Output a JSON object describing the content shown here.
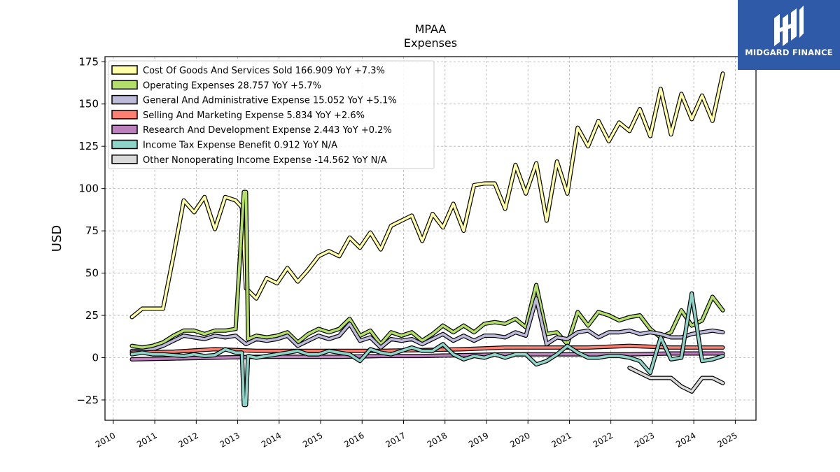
{
  "brand": {
    "name": "MIDGARD FINANCE",
    "bg_color": "#2f5aa8",
    "icon": "midgard-logo-icon"
  },
  "chart_data": {
    "type": "line",
    "title": "MPAA",
    "subtitle": "Expenses",
    "xlabel": "",
    "ylabel": "USD",
    "ylim": [
      -37,
      178
    ],
    "xlim": [
      2009.8,
      2025.5
    ],
    "yticks": [
      -25,
      0,
      25,
      50,
      75,
      100,
      125,
      150,
      175
    ],
    "ytick_labels": [
      "−25",
      "0",
      "25",
      "50",
      "75",
      "100",
      "125",
      "150",
      "175"
    ],
    "xticks": [
      2010,
      2011,
      2012,
      2013,
      2014,
      2015,
      2016,
      2017,
      2018,
      2019,
      2020,
      2021,
      2022,
      2023,
      2024,
      2025
    ],
    "grid": true,
    "legend_position": "top-left",
    "series": [
      {
        "name": "Cost Of Goods And Services Sold",
        "legend": "Cost Of Goods And Services Sold  166.909 YoY +7.3%",
        "color": "#ffffaa",
        "x": [
          2010.45,
          2010.7,
          2010.95,
          2011.2,
          2011.45,
          2011.7,
          2011.95,
          2012.2,
          2012.45,
          2012.7,
          2012.95,
          2013.1,
          2013.2,
          2013.45,
          2013.7,
          2013.95,
          2014.2,
          2014.45,
          2014.7,
          2014.95,
          2015.2,
          2015.45,
          2015.7,
          2015.95,
          2016.2,
          2016.45,
          2016.7,
          2016.95,
          2017.2,
          2017.45,
          2017.7,
          2017.95,
          2018.2,
          2018.45,
          2018.7,
          2018.95,
          2019.2,
          2019.45,
          2019.7,
          2019.95,
          2020.2,
          2020.45,
          2020.7,
          2020.95,
          2021.2,
          2021.45,
          2021.7,
          2021.95,
          2022.2,
          2022.45,
          2022.7,
          2022.95,
          2023.2,
          2023.45,
          2023.7,
          2023.95,
          2024.2,
          2024.45,
          2024.7
        ],
        "values": [
          24,
          29,
          29,
          29,
          60,
          93,
          86,
          95,
          76,
          95,
          93,
          89,
          41,
          35,
          47,
          44,
          53,
          45,
          52,
          60,
          63,
          60,
          71,
          65,
          74,
          64,
          78,
          81,
          84,
          69,
          85,
          77,
          91,
          75,
          102,
          103,
          103,
          88,
          114,
          97,
          115,
          81,
          116,
          97,
          136,
          125,
          140,
          128,
          139,
          134,
          147,
          131,
          159,
          132,
          156,
          141,
          155,
          140,
          168
        ]
      },
      {
        "name": "Operating Expenses",
        "legend": "Operating Expenses  28.757 YoY +5.7%",
        "color": "#b3de69",
        "x": [
          2010.45,
          2010.7,
          2010.95,
          2011.2,
          2011.45,
          2011.7,
          2011.95,
          2012.2,
          2012.45,
          2012.7,
          2012.95,
          2013.15,
          2013.2,
          2013.25,
          2013.45,
          2013.7,
          2013.95,
          2014.2,
          2014.45,
          2014.7,
          2014.95,
          2015.2,
          2015.45,
          2015.7,
          2015.95,
          2016.2,
          2016.45,
          2016.7,
          2016.95,
          2017.2,
          2017.45,
          2017.7,
          2017.95,
          2018.2,
          2018.45,
          2018.7,
          2018.95,
          2019.2,
          2019.45,
          2019.7,
          2019.95,
          2020.2,
          2020.45,
          2020.7,
          2020.95,
          2021.2,
          2021.45,
          2021.7,
          2021.95,
          2022.2,
          2022.45,
          2022.7,
          2022.95,
          2023.2,
          2023.45,
          2023.7,
          2023.95,
          2024.2,
          2024.45,
          2024.7
        ],
        "values": [
          7,
          6,
          7,
          9,
          13,
          16,
          16,
          14,
          16,
          16,
          17,
          98,
          98,
          11,
          13,
          12,
          13,
          15,
          9,
          14,
          17,
          15,
          17,
          23,
          13,
          16,
          8,
          15,
          13,
          15,
          10,
          14,
          19,
          15,
          19,
          15,
          20,
          21,
          20,
          23,
          18,
          43,
          14,
          15,
          8,
          27,
          19,
          27,
          25,
          22,
          24,
          25,
          17,
          12,
          15,
          28,
          19,
          22,
          36,
          28
        ]
      },
      {
        "name": "General And Administrative Expense",
        "legend": "General And Administrative Expense  15.052 YoY +5.1%",
        "color": "#bebada",
        "x": [
          2010.45,
          2010.7,
          2010.95,
          2011.2,
          2011.45,
          2011.7,
          2011.95,
          2012.2,
          2012.45,
          2012.7,
          2012.95,
          2013.2,
          2013.45,
          2013.7,
          2013.95,
          2014.2,
          2014.45,
          2014.7,
          2014.95,
          2015.2,
          2015.45,
          2015.7,
          2015.95,
          2016.2,
          2016.45,
          2016.7,
          2016.95,
          2017.2,
          2017.45,
          2017.7,
          2017.95,
          2018.2,
          2018.45,
          2018.7,
          2018.95,
          2019.2,
          2019.45,
          2019.7,
          2019.95,
          2020.2,
          2020.45,
          2020.7,
          2020.95,
          2021.2,
          2021.45,
          2021.7,
          2021.95,
          2022.2,
          2022.45,
          2022.7,
          2022.95,
          2023.2,
          2023.45,
          2023.7,
          2023.95,
          2024.2,
          2024.45,
          2024.7
        ],
        "values": [
          4,
          4,
          5,
          7,
          10,
          13,
          12,
          11,
          13,
          12,
          13,
          8,
          11,
          10,
          11,
          13,
          7,
          10,
          13,
          11,
          13,
          20,
          10,
          12,
          6,
          11,
          10,
          11,
          8,
          11,
          14,
          10,
          13,
          10,
          13,
          13,
          12,
          15,
          13,
          35,
          8,
          12,
          11,
          15,
          16,
          12,
          15,
          15,
          16,
          14,
          15,
          14,
          12,
          12,
          14,
          15,
          16,
          15
        ]
      },
      {
        "name": "Selling And Marketing Expense",
        "legend": "Selling And Marketing Expense  5.834 YoY +2.6%",
        "color": "#fb8072",
        "x": [
          2010.45,
          2011.45,
          2012.45,
          2013.45,
          2014.45,
          2015.45,
          2016.45,
          2017.45,
          2018.45,
          2019.45,
          2020.45,
          2021.45,
          2022.45,
          2023.45,
          2024.7
        ],
        "values": [
          3,
          3.5,
          5,
          4,
          4,
          4,
          4,
          4.5,
          5,
          6,
          6,
          6,
          7,
          6,
          6
        ]
      },
      {
        "name": "Research And Development Expense",
        "legend": "Research And Development Expense  2.443 YoY +0.2%",
        "color": "#bc80bd",
        "x": [
          2010.45,
          2011.45,
          2012.45,
          2013.45,
          2014.45,
          2015.45,
          2016.45,
          2017.45,
          2018.45,
          2019.45,
          2020.45,
          2021.45,
          2022.45,
          2023.45,
          2024.7
        ],
        "values": [
          -1,
          -0.5,
          0,
          0.5,
          0.5,
          0.5,
          1,
          1,
          1.5,
          2,
          2,
          2,
          2,
          2.5,
          2.5
        ]
      },
      {
        "name": "Income Tax Expense Benefit",
        "legend": "Income Tax Expense Benefit  0.912 YoY N/A",
        "color": "#8dd3c7",
        "x": [
          2010.45,
          2010.7,
          2010.95,
          2011.2,
          2011.45,
          2011.7,
          2011.95,
          2012.2,
          2012.45,
          2012.7,
          2012.95,
          2013.1,
          2013.15,
          2013.2,
          2013.25,
          2013.45,
          2013.7,
          2013.95,
          2014.2,
          2014.45,
          2014.7,
          2014.95,
          2015.2,
          2015.45,
          2015.7,
          2015.95,
          2016.2,
          2016.45,
          2016.7,
          2016.95,
          2017.2,
          2017.45,
          2017.7,
          2017.95,
          2018.2,
          2018.45,
          2018.7,
          2018.95,
          2019.2,
          2019.45,
          2019.7,
          2019.95,
          2020.2,
          2020.45,
          2020.7,
          2020.95,
          2021.2,
          2021.45,
          2021.7,
          2021.95,
          2022.2,
          2022.45,
          2022.7,
          2022.95,
          2023.2,
          2023.45,
          2023.7,
          2023.95,
          2024.2,
          2024.45,
          2024.7
        ],
        "values": [
          2,
          3,
          2,
          2,
          1.5,
          1,
          2,
          1,
          1.5,
          5,
          3,
          3,
          -28,
          -28,
          1,
          0,
          1,
          2,
          3,
          4,
          2,
          2,
          4,
          3,
          2,
          -2,
          5,
          3,
          2,
          4,
          6,
          4,
          4,
          8,
          2,
          -1,
          1,
          0,
          2,
          0,
          2,
          2,
          -4,
          -2,
          2,
          7,
          3,
          0,
          0,
          1,
          1,
          0,
          -2,
          -9,
          12,
          -1,
          0,
          38,
          -2,
          -1,
          1
        ]
      },
      {
        "name": "Other Nonoperating Income Expense",
        "legend": "Other Nonoperating Income Expense  -14.562 YoY N/A",
        "color": "#d9d9d9",
        "x": [
          2022.45,
          2022.7,
          2022.95,
          2023.2,
          2023.45,
          2023.7,
          2023.95,
          2024.2,
          2024.45,
          2024.7
        ],
        "values": [
          -6,
          -9,
          -12,
          -12,
          -12,
          -17,
          -20,
          -12,
          -12,
          -15
        ]
      }
    ]
  }
}
